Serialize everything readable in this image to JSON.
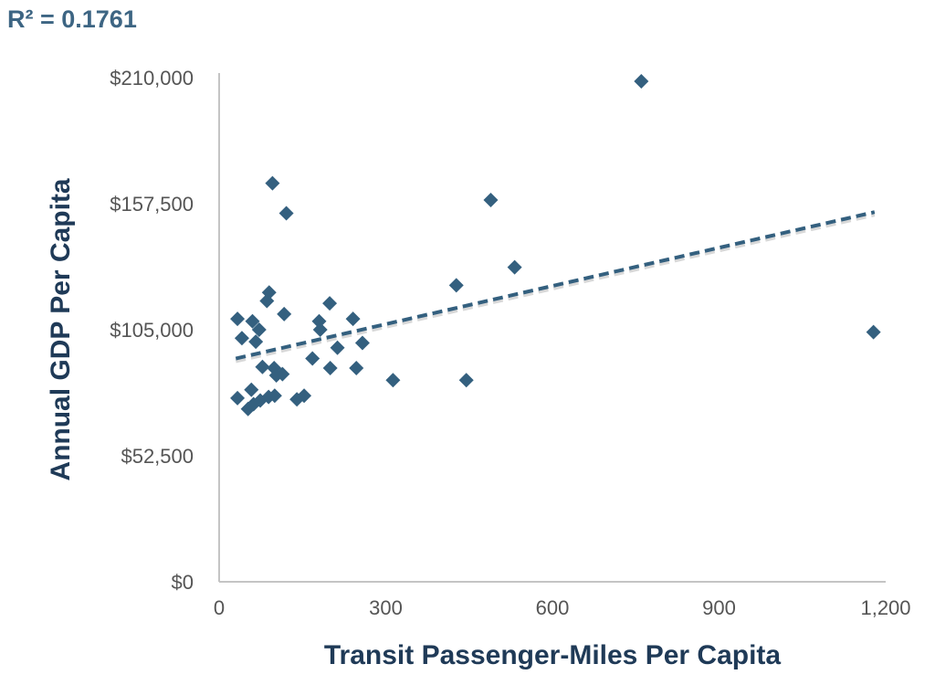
{
  "annotation": "R² = 0.1761",
  "colors": {
    "point": "#34607f",
    "trendline": "#34607f",
    "axis": "#c4c4c4",
    "tick_text": "#555555",
    "title_text": "#1f3a57"
  },
  "chart_data": {
    "type": "scatter",
    "xlabel": "Transit Passenger-Miles Per Capita",
    "ylabel": "Annual GDP Per Capita",
    "xlim": [
      0,
      1200
    ],
    "ylim": [
      0,
      210000
    ],
    "xticks": [
      0,
      300,
      600,
      900,
      1200
    ],
    "yticks": [
      0,
      52500,
      105000,
      157500,
      210000
    ],
    "xtick_labels": [
      "0",
      "300",
      "600",
      "900",
      "1,200"
    ],
    "ytick_labels": [
      "$0",
      "$52,500",
      "$105,000",
      "$157,500",
      "$210,000"
    ],
    "grid": false,
    "annotation": "R² = 0.1761",
    "trendline": {
      "style": "dashed",
      "x": [
        30,
        1180
      ],
      "y": [
        93000,
        154000
      ]
    },
    "points": [
      {
        "x": 760,
        "y": 208500
      },
      {
        "x": 96,
        "y": 166000
      },
      {
        "x": 121,
        "y": 153500
      },
      {
        "x": 489,
        "y": 159000
      },
      {
        "x": 532,
        "y": 131000
      },
      {
        "x": 427,
        "y": 123500
      },
      {
        "x": 1178,
        "y": 104000
      },
      {
        "x": 90,
        "y": 120500
      },
      {
        "x": 86,
        "y": 117000
      },
      {
        "x": 199,
        "y": 116000
      },
      {
        "x": 117,
        "y": 111500
      },
      {
        "x": 33,
        "y": 109500
      },
      {
        "x": 60,
        "y": 108500
      },
      {
        "x": 180,
        "y": 108500
      },
      {
        "x": 241,
        "y": 109500
      },
      {
        "x": 72,
        "y": 105000
      },
      {
        "x": 182,
        "y": 105000
      },
      {
        "x": 41,
        "y": 101500
      },
      {
        "x": 66,
        "y": 100000
      },
      {
        "x": 258,
        "y": 99500
      },
      {
        "x": 213,
        "y": 97500
      },
      {
        "x": 168,
        "y": 93000
      },
      {
        "x": 78,
        "y": 89500
      },
      {
        "x": 99,
        "y": 89000
      },
      {
        "x": 200,
        "y": 89000
      },
      {
        "x": 247,
        "y": 89000
      },
      {
        "x": 103,
        "y": 86000
      },
      {
        "x": 114,
        "y": 86500
      },
      {
        "x": 313,
        "y": 84000
      },
      {
        "x": 445,
        "y": 84000
      },
      {
        "x": 58,
        "y": 80000
      },
      {
        "x": 33,
        "y": 76500
      },
      {
        "x": 89,
        "y": 77000
      },
      {
        "x": 100,
        "y": 77500
      },
      {
        "x": 153,
        "y": 77500
      },
      {
        "x": 140,
        "y": 76000
      },
      {
        "x": 74,
        "y": 75500
      },
      {
        "x": 62,
        "y": 74000
      },
      {
        "x": 52,
        "y": 72000
      }
    ]
  }
}
